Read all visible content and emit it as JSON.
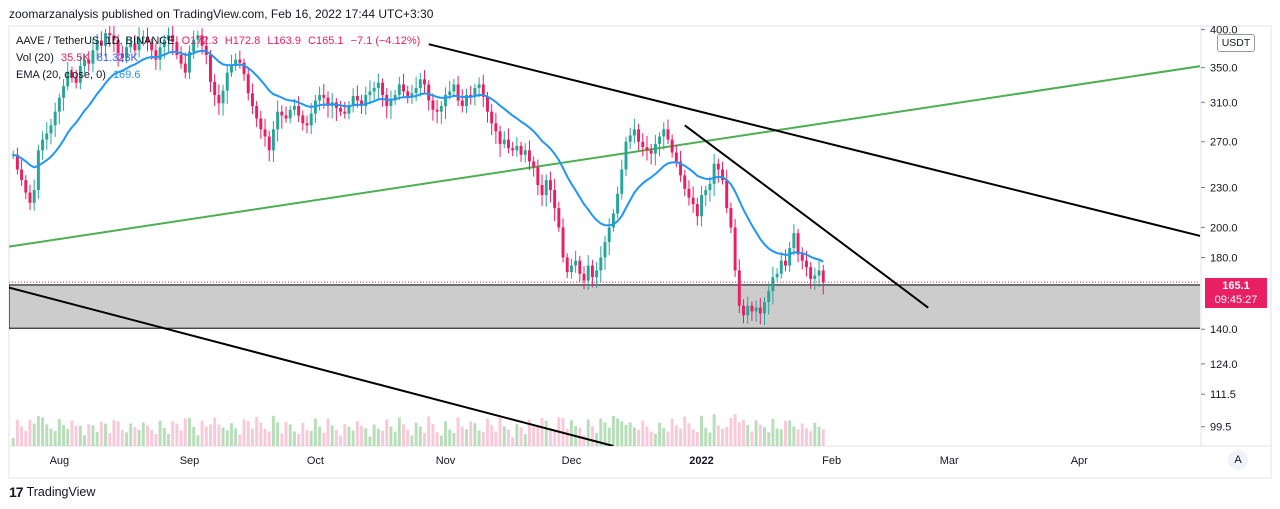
{
  "publish_line": "zoomarzanalysis published on TradingView.com, Feb 16, 2022 17:44 UTC+3:30",
  "legend": {
    "title_parts": [
      "AAVE / TetherUS, 1D, BINANCE",
      "O172.3",
      "H172.8",
      "L163.9",
      "C165.1",
      "−7.1 (−4.12%)"
    ],
    "vol_label": "Vol (20)",
    "vol_values": [
      "35.5K",
      "81.323K"
    ],
    "ema_label": "EMA (20, close, 0)",
    "ema_value": "169.6"
  },
  "currency_button": "USDT",
  "last_price_tag": {
    "price": "165.1",
    "countdown": "09:45:27"
  },
  "scale_mode": "A",
  "branding": "TradingView",
  "colors": {
    "up": "#26a69a",
    "down": "#e91e63",
    "ema": "#2196f3",
    "trend_green": "#4caf50",
    "trend_black": "#000000",
    "zone": "#cccccc"
  },
  "chart_data": {
    "type": "candlestick",
    "symbol": "AAVE / TetherUS",
    "interval": "1D",
    "exchange": "BINANCE",
    "y_scale": "log",
    "ylim": [
      93,
      405
    ],
    "y_ticks": [
      400.0,
      350.0,
      310.0,
      270.0,
      230.0,
      200.0,
      180.0,
      140.0,
      124.0,
      111.5,
      99.5
    ],
    "x_ticks": [
      {
        "label": "Aug",
        "date": "2021-08-01"
      },
      {
        "label": "Sep",
        "date": "2021-09-01"
      },
      {
        "label": "Oct",
        "date": "2021-10-01"
      },
      {
        "label": "Nov",
        "date": "2021-11-01"
      },
      {
        "label": "Dec",
        "date": "2021-12-01"
      },
      {
        "label": "2022",
        "date": "2022-01-01",
        "bold": true
      },
      {
        "label": "Feb",
        "date": "2022-02-01"
      },
      {
        "label": "Mar",
        "date": "2022-03-01"
      },
      {
        "label": "Apr",
        "date": "2022-04-01"
      }
    ],
    "x_range": [
      "2021-07-20",
      "2022-04-30"
    ],
    "close_series": {
      "start_date": "2021-07-21",
      "note_units": "USDT",
      "values": [
        258,
        245,
        236,
        226,
        218,
        228,
        262,
        272,
        278,
        286,
        300,
        315,
        328,
        345,
        338,
        332,
        352,
        360,
        355,
        372,
        385,
        378,
        395,
        392,
        386,
        368,
        362,
        376,
        381,
        372,
        388,
        390,
        382,
        372,
        360,
        376,
        386,
        392,
        383,
        366,
        355,
        344,
        370,
        386,
        392,
        378,
        366,
        333,
        318,
        309,
        323,
        344,
        352,
        360,
        356,
        342,
        320,
        306,
        293,
        282,
        275,
        262,
        282,
        300,
        296,
        293,
        302,
        306,
        296,
        288,
        286,
        298,
        312,
        318,
        315,
        306,
        310,
        304,
        300,
        298,
        306,
        317,
        312,
        306,
        318,
        322,
        326,
        332,
        318,
        306,
        312,
        318,
        330,
        322,
        316,
        320,
        326,
        336,
        330,
        312,
        302,
        300,
        306,
        318,
        322,
        330,
        312,
        306,
        318,
        316,
        326,
        330,
        316,
        300,
        288,
        280,
        268,
        272,
        264,
        262,
        266,
        258,
        262,
        252,
        247,
        232,
        224,
        236,
        228,
        214,
        200,
        180,
        171,
        175,
        178,
        170,
        166,
        175,
        168,
        172,
        180,
        190,
        200,
        210,
        225,
        245,
        270,
        276,
        282,
        270,
        265,
        262,
        259,
        268,
        275,
        282,
        272,
        260,
        252,
        240,
        229,
        222,
        217,
        208,
        224,
        228,
        233,
        250,
        245,
        236,
        214,
        200,
        172,
        152,
        147,
        152,
        149,
        151,
        148,
        154,
        160,
        168,
        170,
        178,
        175,
        186,
        196,
        182,
        178,
        174,
        167,
        169,
        172,
        165.1
      ]
    },
    "ema": {
      "period": 20,
      "last": 169.6
    },
    "volume": {
      "period": 20,
      "last": "35.5K",
      "ma": "81.323K"
    },
    "horizontal_lines": [
      {
        "price": 165.1,
        "style": "dotted"
      }
    ],
    "zone": {
      "low": 140.5,
      "high": 163.5
    },
    "trendlines": [
      {
        "color": "green",
        "from": {
          "date": "2021-07-20",
          "price": 187
        },
        "to": {
          "date": "2022-04-30",
          "price": 352
        }
      },
      {
        "color": "black",
        "from": {
          "date": "2021-10-28",
          "price": 380
        },
        "to": {
          "date": "2022-04-30",
          "price": 194
        }
      },
      {
        "color": "black",
        "from": {
          "date": "2021-12-28",
          "price": 286
        },
        "to": {
          "date": "2022-02-24",
          "price": 151
        }
      },
      {
        "color": "black",
        "from": {
          "date": "2021-07-20",
          "price": 162
        },
        "to": {
          "date": "2021-12-11",
          "price": 93
        }
      }
    ]
  }
}
